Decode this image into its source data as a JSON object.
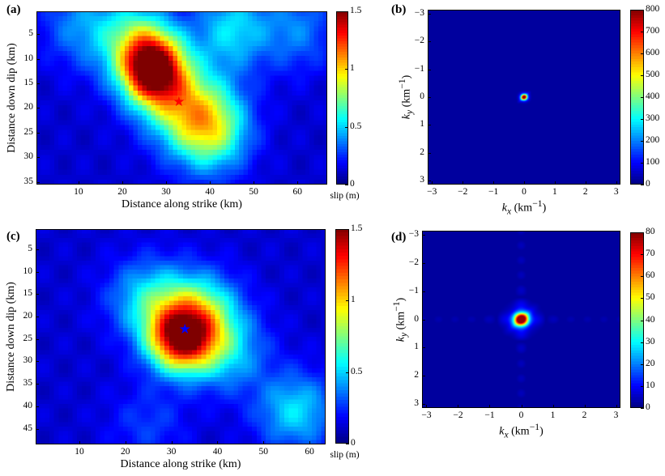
{
  "chart_data": [
    {
      "panel": "(a)",
      "type": "heatmap",
      "xlabel": "Distance along strike (km)",
      "ylabel": "Distance down dip (km)",
      "xticks": [
        "10",
        "20",
        "30",
        "40",
        "50",
        "60"
      ],
      "yticks": [
        "5",
        "10",
        "15",
        "20",
        "25",
        "30",
        "35"
      ],
      "xlim": [
        0.4,
        66.8
      ],
      "ylim": [
        0.4,
        35.5
      ],
      "y_reversed": true,
      "colormap": "jet",
      "colorbar": {
        "label": "slip (m)",
        "ticks": [
          "0",
          "0.5",
          "1",
          "1.5"
        ],
        "range": [
          0,
          1.5
        ]
      },
      "hypocenter": {
        "x": 33,
        "y": 19,
        "marker": "star",
        "color": "#ff0000"
      },
      "slip_peaks": [
        {
          "x": 27,
          "y": 12,
          "value": 1.5
        },
        {
          "x": 40,
          "y": 24,
          "value": 0.85
        },
        {
          "x": 22,
          "y": 6,
          "value": 0.55
        },
        {
          "x": 45,
          "y": 4,
          "value": 0.5
        },
        {
          "x": 10,
          "y": 3,
          "value": 0.35
        },
        {
          "x": 33,
          "y": 19,
          "value": 0.6
        },
        {
          "x": 60,
          "y": 4,
          "value": 0.35
        }
      ]
    },
    {
      "panel": "(b)",
      "type": "heatmap",
      "xlabel": {
        "var": "k",
        "sub": "x",
        "unit": " (km",
        "sup": "−1",
        "close": ")"
      },
      "ylabel": {
        "var": "k",
        "sub": "y",
        "unit": " (km",
        "sup": "−1",
        "close": ")"
      },
      "xticks": [
        "−3",
        "−2",
        "−1",
        "0",
        "1",
        "2",
        "3"
      ],
      "yticks": [
        "−3",
        "−2",
        "−1",
        "0",
        "1",
        "2",
        "3"
      ],
      "xlim": [
        -3.14,
        3.14
      ],
      "ylim": [
        -3.14,
        3.14
      ],
      "y_reversed": true,
      "colormap": "jet",
      "colorbar": {
        "label": "",
        "ticks": [
          "0",
          "100",
          "200",
          "300",
          "400",
          "500",
          "600",
          "700",
          "800"
        ],
        "range": [
          0,
          800
        ]
      },
      "spectrum_peak": {
        "kx": 0,
        "ky": 0,
        "value": 800,
        "width": 0.07
      }
    },
    {
      "panel": "(c)",
      "type": "heatmap",
      "xlabel": "Distance along strike (km)",
      "ylabel": "Distance down dip (km)",
      "xticks": [
        "10",
        "20",
        "30",
        "40",
        "50",
        "60"
      ],
      "yticks": [
        "5",
        "10",
        "15",
        "20",
        "25",
        "30",
        "35",
        "40",
        "45"
      ],
      "xlim": [
        0.5,
        63.5
      ],
      "ylim": [
        0.5,
        48.5
      ],
      "y_reversed": true,
      "colormap": "jet",
      "colorbar": {
        "label": "slip (m)",
        "ticks": [
          "0",
          "0.5",
          "1",
          "1.5"
        ],
        "range": [
          0,
          1.5
        ]
      },
      "hypocenter": {
        "x": 33,
        "y": 23,
        "marker": "star",
        "color": "#0000ff"
      },
      "slip_peaks": [
        {
          "x": 32,
          "y": 25,
          "value": 1.3
        },
        {
          "x": 36,
          "y": 19,
          "value": 0.7
        },
        {
          "x": 25,
          "y": 16,
          "value": 0.5
        },
        {
          "x": 42,
          "y": 28,
          "value": 0.45
        },
        {
          "x": 57,
          "y": 41,
          "value": 0.5
        },
        {
          "x": 25,
          "y": 44,
          "value": 0.25
        }
      ]
    },
    {
      "panel": "(d)",
      "type": "heatmap",
      "xlabel": {
        "var": "k",
        "sub": "x",
        "unit": " (km",
        "sup": "−1",
        "close": ")"
      },
      "ylabel": {
        "var": "k",
        "sub": "y",
        "unit": " (km",
        "sup": "−1",
        "close": ")"
      },
      "xticks": [
        "−3",
        "−2",
        "−1",
        "0",
        "1",
        "2",
        "3"
      ],
      "yticks": [
        "−3",
        "−2",
        "−1",
        "0",
        "1",
        "2",
        "3"
      ],
      "xlim": [
        -3.14,
        3.14
      ],
      "ylim": [
        -3.14,
        3.14
      ],
      "y_reversed": true,
      "colormap": "jet",
      "colorbar": {
        "label": "",
        "ticks": [
          "0",
          "10",
          "20",
          "30",
          "40",
          "50",
          "60",
          "70",
          "80"
        ],
        "range": [
          0,
          80
        ]
      },
      "spectrum_peak": {
        "kx": 0,
        "ky": 0,
        "value": 80,
        "width": 0.16
      }
    }
  ]
}
